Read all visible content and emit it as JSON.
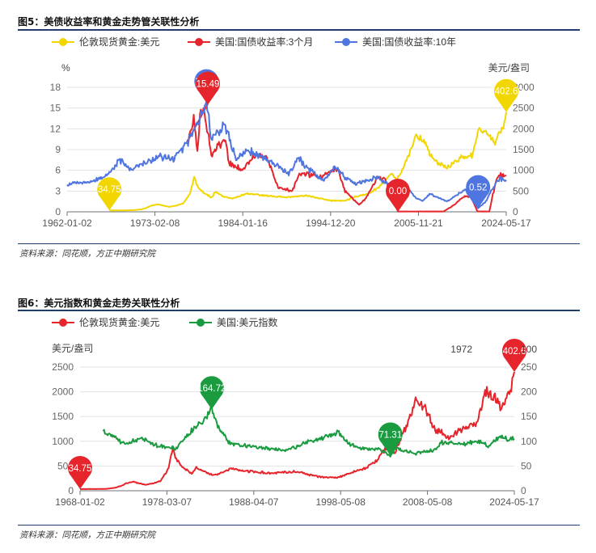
{
  "figures": [
    {
      "title": "图5：美债收益率和黄金走势管关联性分析",
      "source": "资料来源：同花顺，方正中期研究院"
    },
    {
      "title": "图6：美元指数和黄金走势关联性分析",
      "source": "资料来源：同花顺，方正中期研究院"
    }
  ],
  "chart_data": [
    {
      "type": "line",
      "x_ticks": [
        "1962-01-02",
        "1973-02-08",
        "1984-01-16",
        "1994-12-20",
        "2005-11-21",
        "2024-05-17"
      ],
      "x_range": [
        1962.0,
        2024.4
      ],
      "left_axis": {
        "unit": "%",
        "ticks": [
          0,
          3,
          6,
          9,
          12,
          15,
          18
        ],
        "range": [
          0,
          18
        ]
      },
      "right_axis": {
        "unit": "美元/盎司",
        "ticks": [
          0,
          500,
          1000,
          1500,
          2000,
          2500,
          3000
        ],
        "range": [
          0,
          3000
        ]
      },
      "grid": true,
      "legend_position": "top",
      "series": [
        {
          "name": "伦敦现货黄金:美元",
          "color": "#f2d600",
          "axis": "right",
          "x": [
            1968.0,
            1970.0,
            1971.5,
            1972.5,
            1973.2,
            1974.0,
            1974.9,
            1976.5,
            1977.5,
            1978.5,
            1979.5,
            1980.05,
            1980.5,
            1981.5,
            1982.5,
            1983.1,
            1984.5,
            1985.5,
            1987.5,
            1988.5,
            1990.0,
            1993.0,
            1996.0,
            1999.5,
            2001.5,
            2003.0,
            2005.0,
            2006.5,
            2008.2,
            2008.8,
            2010.0,
            2011.7,
            2012.7,
            2014.0,
            2015.9,
            2018.0,
            2019.5,
            2020.6,
            2022.0,
            2022.8,
            2023.5,
            2024.0,
            2024.4
          ],
          "y": [
            35,
            35,
            40,
            60,
            90,
            150,
            180,
            120,
            150,
            200,
            450,
            850,
            620,
            450,
            350,
            480,
            350,
            320,
            440,
            420,
            390,
            350,
            390,
            270,
            270,
            360,
            450,
            620,
            950,
            760,
            1150,
            1850,
            1700,
            1250,
            1060,
            1300,
            1350,
            2000,
            1850,
            1650,
            1950,
            2050,
            2402.6
          ]
        },
        {
          "name": "美国:国债收益率:3个月",
          "color": "#e6242b",
          "axis": "left",
          "x": [
            1982.0,
            1979.0,
            1980.0,
            1980.5,
            1981.0,
            1981.5,
            1982.5,
            1983.0,
            1984.5,
            1985.0,
            1987.0,
            1989.0,
            1990.5,
            1992.0,
            1994.0,
            1995.0,
            1998.0,
            2000.5,
            2001.5,
            2003.5,
            2004.5,
            2006.0,
            2007.0,
            2008.5,
            2009.0,
            2015.5,
            2017.0,
            2018.5,
            2019.5,
            2020.3,
            2022.0,
            2022.5,
            2023.0,
            2023.5,
            2024.4
          ],
          "y": [
            15.6,
            9.5,
            13.5,
            8.5,
            15.0,
            14.5,
            8.0,
            9.0,
            10.5,
            7.0,
            6.0,
            8.5,
            7.5,
            3.5,
            3.0,
            5.7,
            5.0,
            6.2,
            3.0,
            1.0,
            2.0,
            4.8,
            5.0,
            1.5,
            0.05,
            0.05,
            1.0,
            2.3,
            2.0,
            0.05,
            0.05,
            2.5,
            4.5,
            5.4,
            5.3
          ]
        },
        {
          "name": "美国:国债收益率:10年",
          "color": "#4f75e0",
          "axis": "left",
          "x": [
            1962.0,
            1965.0,
            1968.0,
            1969.5,
            1971.0,
            1973.0,
            1975.0,
            1977.0,
            1978.5,
            1980.0,
            1981.8,
            1982.5,
            1983.5,
            1984.5,
            1986.0,
            1987.5,
            1989.5,
            1992.0,
            1993.5,
            1994.8,
            1996.0,
            1998.5,
            2000.0,
            2001.5,
            2003.0,
            2006.0,
            2008.0,
            2009.0,
            2010.5,
            2011.5,
            2012.5,
            2013.5,
            2016.0,
            2018.5,
            2020.4,
            2021.5,
            2022.5,
            2023.5,
            2024.4
          ],
          "y": [
            4.0,
            4.2,
            5.5,
            7.5,
            6.0,
            7.0,
            8.0,
            7.5,
            9.0,
            11.5,
            15.8,
            10.5,
            11.5,
            12.5,
            7.5,
            9.0,
            8.0,
            6.5,
            5.5,
            7.8,
            6.5,
            4.5,
            6.5,
            5.0,
            4.0,
            5.0,
            3.8,
            3.0,
            3.2,
            2.0,
            1.6,
            2.6,
            1.5,
            3.2,
            0.52,
            1.5,
            3.5,
            4.8,
            4.4
          ]
        }
      ],
      "annotations": [
        {
          "label": "34.75",
          "series": "伦敦现货黄金:美元",
          "x": 1968.0,
          "y": 34.75
        },
        {
          "label": "15.84",
          "series": "美国:国债收益率:10年",
          "x": 1981.8,
          "y": 15.84
        },
        {
          "label": "15.49",
          "series": "美国:国债收益率:3个月",
          "x": 1982.0,
          "y": 15.49
        },
        {
          "label": "0.00",
          "series": "美国:国债收益率:3个月",
          "x": 2009.0,
          "y": 0.0
        },
        {
          "label": "0.52",
          "series": "美国:国债收益率:10年",
          "x": 2020.4,
          "y": 0.52
        },
        {
          "label": "2402.60",
          "series": "伦敦现货黄金:美元",
          "x": 2024.4,
          "y": 2402.6
        }
      ]
    },
    {
      "type": "line",
      "x_ticks": [
        "1968-01-02",
        "1978-03-07",
        "1988-04-07",
        "1998-05-08",
        "2008-05-08",
        "2024-05-17"
      ],
      "x_range": [
        1968.0,
        2024.4
      ],
      "left_axis": {
        "unit": "美元/盎司",
        "ticks": [
          0,
          500,
          1000,
          1500,
          2000,
          2500
        ],
        "range": [
          0,
          2500
        ]
      },
      "right_axis": {
        "unit": "",
        "ticks": [
          0,
          50,
          100,
          150,
          200,
          250
        ],
        "range": [
          0,
          250
        ]
      },
      "grid": true,
      "legend_position": "top",
      "series": [
        {
          "name": "伦敦现货黄金:美元",
          "color": "#e6242b",
          "axis": "left",
          "x": [
            1968.0,
            1970.0,
            1971.5,
            1972.5,
            1973.2,
            1974.0,
            1974.9,
            1976.5,
            1977.5,
            1978.5,
            1979.5,
            1980.05,
            1980.5,
            1981.5,
            1982.5,
            1983.1,
            1984.5,
            1985.5,
            1987.5,
            1988.5,
            1990.0,
            1993.0,
            1996.0,
            1999.5,
            2001.5,
            2003.0,
            2005.0,
            2006.5,
            2008.2,
            2008.8,
            2010.0,
            2011.7,
            2012.7,
            2014.0,
            2015.9,
            2018.0,
            2019.5,
            2020.6,
            2022.0,
            2022.8,
            2023.5,
            2024.0,
            2024.4
          ],
          "y": [
            35,
            35,
            40,
            60,
            90,
            150,
            180,
            120,
            150,
            200,
            450,
            850,
            620,
            450,
            350,
            480,
            350,
            320,
            440,
            420,
            390,
            350,
            390,
            270,
            270,
            360,
            450,
            620,
            950,
            760,
            1150,
            1850,
            1700,
            1250,
            1060,
            1300,
            1350,
            2000,
            1850,
            1650,
            1950,
            2050,
            2402.6
          ]
        },
        {
          "name": "美国:美元指数",
          "color": "#1a9b40",
          "axis": "right",
          "x": [
            1971.0,
            1972.5,
            1973.5,
            1975.0,
            1976.5,
            1978.0,
            1979.5,
            1980.5,
            1982.0,
            1984.0,
            1985.1,
            1986.0,
            1987.5,
            1990.0,
            1992.5,
            1995.0,
            1997.0,
            2000.0,
            2001.5,
            2003.0,
            2004.5,
            2006.5,
            2008.3,
            2009.0,
            2010.5,
            2011.5,
            2014.0,
            2015.0,
            2018.0,
            2020.0,
            2021.0,
            2022.7,
            2023.5,
            2024.4
          ],
          "y": [
            120,
            110,
            95,
            100,
            105,
            90,
            88,
            85,
            115,
            140,
            164.72,
            125,
            95,
            90,
            85,
            82,
            95,
            110,
            118,
            95,
            85,
            85,
            71.31,
            85,
            80,
            75,
            82,
            98,
            95,
            100,
            90,
            112,
            102,
            105
          ]
        }
      ],
      "annotations": [
        {
          "label": "34.75",
          "series": "伦敦现货黄金:美元",
          "x": 1968.0,
          "y": 34.75
        },
        {
          "label": "164.72",
          "series": "美国:美元指数",
          "x": 1985.1,
          "y": 164.72
        },
        {
          "label": "71.31",
          "series": "美国:美元指数",
          "x": 2008.3,
          "y": 71.31
        },
        {
          "label": "2402.60",
          "series": "伦敦现货黄金:美元",
          "x": 2024.4,
          "y": 2402.6
        },
        {
          "label": "1972",
          "series": "",
          "x": 2024.4,
          "y": 2402.6
        },
        {
          "label": "100",
          "series": "",
          "x": 2024.4,
          "y": 2402.6
        }
      ]
    }
  ]
}
